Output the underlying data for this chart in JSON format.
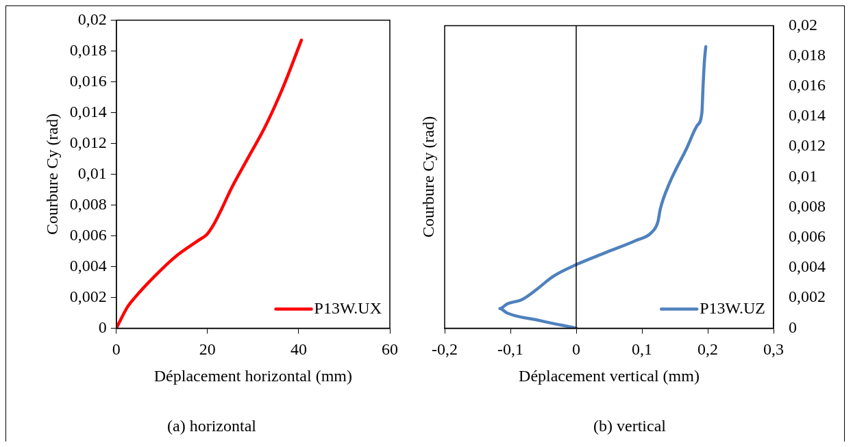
{
  "chart_data": [
    {
      "type": "line",
      "xlabel": "Déplacement horizontal (mm)",
      "ylabel": "Courbure Cy (rad)",
      "annotations": [
        "(a) horizontal"
      ],
      "xlim": [
        0,
        60
      ],
      "xticks": [
        0,
        20,
        40,
        60
      ],
      "ylim": [
        0,
        0.02
      ],
      "yticks": [
        0,
        {
          "value": 0.002,
          "label": "0,002"
        },
        {
          "value": 0.004,
          "label": "0,004"
        },
        {
          "value": 0.006,
          "label": "0,006"
        },
        {
          "value": 0.008,
          "label": "0,008"
        },
        {
          "value": 0.01,
          "label": "0,01"
        },
        {
          "value": 0.012,
          "label": "0,012"
        },
        {
          "value": 0.014,
          "label": "0,014"
        },
        {
          "value": 0.016,
          "label": "0,016"
        },
        {
          "value": 0.018,
          "label": "0,018"
        },
        {
          "value": 0.02,
          "label": "0,02"
        }
      ],
      "grid": false,
      "legend": "bottom right",
      "series": [
        {
          "name": "P13W.UX",
          "color": "#ff0000",
          "x": [
            0,
            2.5,
            4.1,
            8.5,
            12.8,
            18.0,
            19.9,
            21.5,
            23.2,
            25.1,
            28.6,
            32.5,
            34.6,
            36.8,
            40.6
          ],
          "values": [
            0,
            0.0014,
            0.002,
            0.0034,
            0.0046,
            0.0057,
            0.0061,
            0.0068,
            0.0078,
            0.009,
            0.0109,
            0.013,
            0.0143,
            0.0158,
            0.0187
          ]
        }
      ]
    },
    {
      "type": "line",
      "xlabel": "Déplacement vertical (mm)",
      "ylabel": "Courbure Cy (rad)",
      "annotations": [
        "(b) vertical"
      ],
      "xlim": [
        -0.2,
        0.3
      ],
      "xticks": [
        {
          "value": -0.2,
          "label": "-0,2"
        },
        {
          "value": -0.1,
          "label": "-0,1"
        },
        0,
        {
          "value": 0.1,
          "label": "0,1"
        },
        {
          "value": 0.2,
          "label": "0,2"
        },
        {
          "value": 0.3,
          "label": "0,3"
        }
      ],
      "ylim": [
        0,
        0.02
      ],
      "yticks": [
        0,
        {
          "value": 0.002,
          "label": "0,002"
        },
        {
          "value": 0.004,
          "label": "0,004"
        },
        {
          "value": 0.006,
          "label": "0,006"
        },
        {
          "value": 0.008,
          "label": "0,008"
        },
        {
          "value": 0.01,
          "label": "0,01"
        },
        {
          "value": 0.012,
          "label": "0,012"
        },
        {
          "value": 0.014,
          "label": "0,014"
        },
        {
          "value": 0.016,
          "label": "0,016"
        },
        {
          "value": 0.018,
          "label": "0,018"
        },
        {
          "value": 0.02,
          "label": "0,02"
        }
      ],
      "grid": false,
      "legend": "bottom right",
      "ref_lines": [
        {
          "axis": "x",
          "value": 0
        }
      ],
      "series": [
        {
          "name": "P13W.UZ",
          "color": "#4f81bd",
          "x": [
            0,
            -0.055,
            -0.105,
            -0.116,
            -0.105,
            -0.082,
            -0.059,
            -0.036,
            0,
            0.045,
            0.091,
            0.114,
            0.124,
            0.128,
            0.141,
            0.168,
            0.184,
            0.191,
            0.193,
            0.195,
            0.197
          ],
          "values": [
            0,
            0.0005,
            0.001,
            0.0013,
            0.0016,
            0.0019,
            0.0026,
            0.0034,
            0.0042,
            0.005,
            0.0058,
            0.0063,
            0.007,
            0.0079,
            0.0095,
            0.0119,
            0.0134,
            0.0142,
            0.0161,
            0.0177,
            0.0186
          ]
        }
      ]
    }
  ]
}
